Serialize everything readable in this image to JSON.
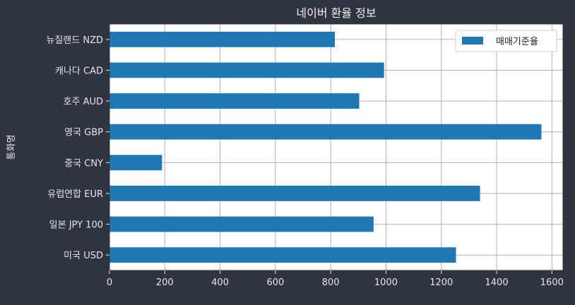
{
  "chart_data": {
    "type": "bar",
    "orientation": "horizontal",
    "title": "네이버 환율 정보",
    "xlabel": "",
    "ylabel": "통화명",
    "categories": [
      "미국 USD",
      "일본 JPY 100",
      "유럽연합 EUR",
      "중국 CNY",
      "영국 GBP",
      "호주 AUD",
      "캐나다 CAD",
      "뉴질랜드 NZD"
    ],
    "series": [
      {
        "name": "매매기준율",
        "values": [
          1253,
          955,
          1340,
          190,
          1562,
          903,
          993,
          815
        ]
      }
    ],
    "xlim": [
      0,
      1640
    ],
    "xticks": [
      0,
      200,
      400,
      600,
      800,
      1000,
      1200,
      1400,
      1600
    ],
    "grid": true,
    "legend_position": "top-right",
    "colors": {
      "bar": "#1f77b4",
      "page_background": "#2e3440",
      "plot_background": "#ffffff",
      "grid": "#b0b0b0",
      "text": "#e6e6e6"
    }
  }
}
